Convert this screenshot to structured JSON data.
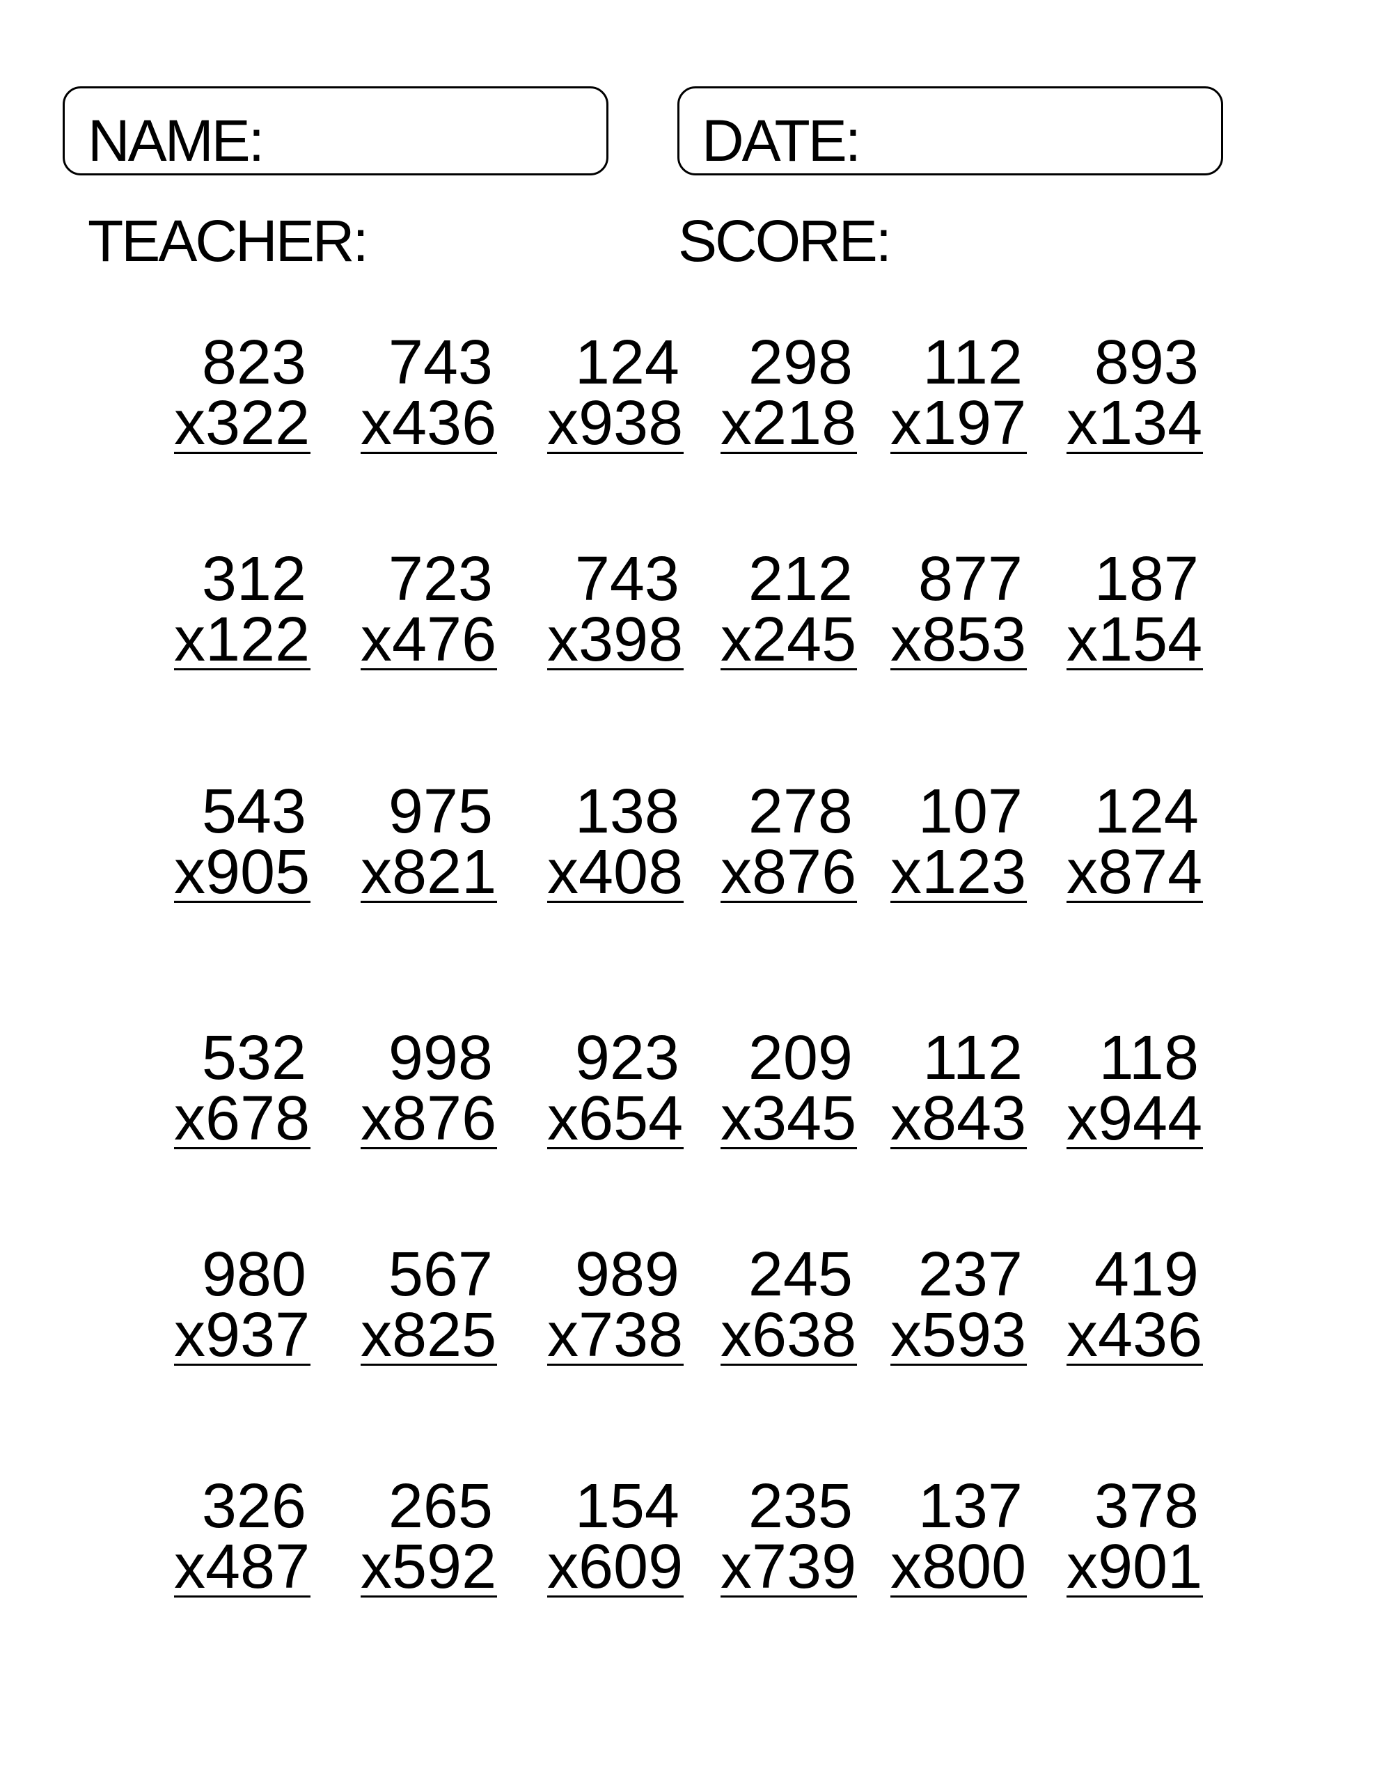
{
  "header": {
    "name_label": "NAME:",
    "date_label": "DATE:",
    "teacher_label": "TEACHER:",
    "score_label": "SCORE:"
  },
  "problems": [
    [
      {
        "top": "823",
        "bottom": "x322"
      },
      {
        "top": "743",
        "bottom": "x436"
      },
      {
        "top": "124",
        "bottom": "x938"
      },
      {
        "top": "298",
        "bottom": "x218"
      },
      {
        "top": "112",
        "bottom": "x197"
      },
      {
        "top": "893",
        "bottom": "x134"
      }
    ],
    [
      {
        "top": "312",
        "bottom": "x122"
      },
      {
        "top": "723",
        "bottom": "x476"
      },
      {
        "top": "743",
        "bottom": "x398"
      },
      {
        "top": "212",
        "bottom": "x245"
      },
      {
        "top": "877",
        "bottom": "x853"
      },
      {
        "top": "187",
        "bottom": "x154"
      }
    ],
    [
      {
        "top": "543",
        "bottom": "x905"
      },
      {
        "top": "975",
        "bottom": "x821"
      },
      {
        "top": "138",
        "bottom": "x408"
      },
      {
        "top": "278",
        "bottom": "x876"
      },
      {
        "top": "107",
        "bottom": "x123"
      },
      {
        "top": "124",
        "bottom": "x874"
      }
    ],
    [
      {
        "top": "532",
        "bottom": "x678"
      },
      {
        "top": "998",
        "bottom": "x876"
      },
      {
        "top": "923",
        "bottom": "x654"
      },
      {
        "top": "209",
        "bottom": "x345"
      },
      {
        "top": "112",
        "bottom": "x843"
      },
      {
        "top": "118",
        "bottom": "x944"
      }
    ],
    [
      {
        "top": "980",
        "bottom": "x937"
      },
      {
        "top": "567",
        "bottom": "x825"
      },
      {
        "top": "989",
        "bottom": "x738"
      },
      {
        "top": "245",
        "bottom": "x638"
      },
      {
        "top": "237",
        "bottom": "x593"
      },
      {
        "top": "419",
        "bottom": "x436"
      }
    ],
    [
      {
        "top": "326",
        "bottom": "x487"
      },
      {
        "top": "265",
        "bottom": "x592"
      },
      {
        "top": "154",
        "bottom": "x609"
      },
      {
        "top": "235",
        "bottom": "x739"
      },
      {
        "top": "137",
        "bottom": "x800"
      },
      {
        "top": "378",
        "bottom": "x901"
      }
    ]
  ]
}
